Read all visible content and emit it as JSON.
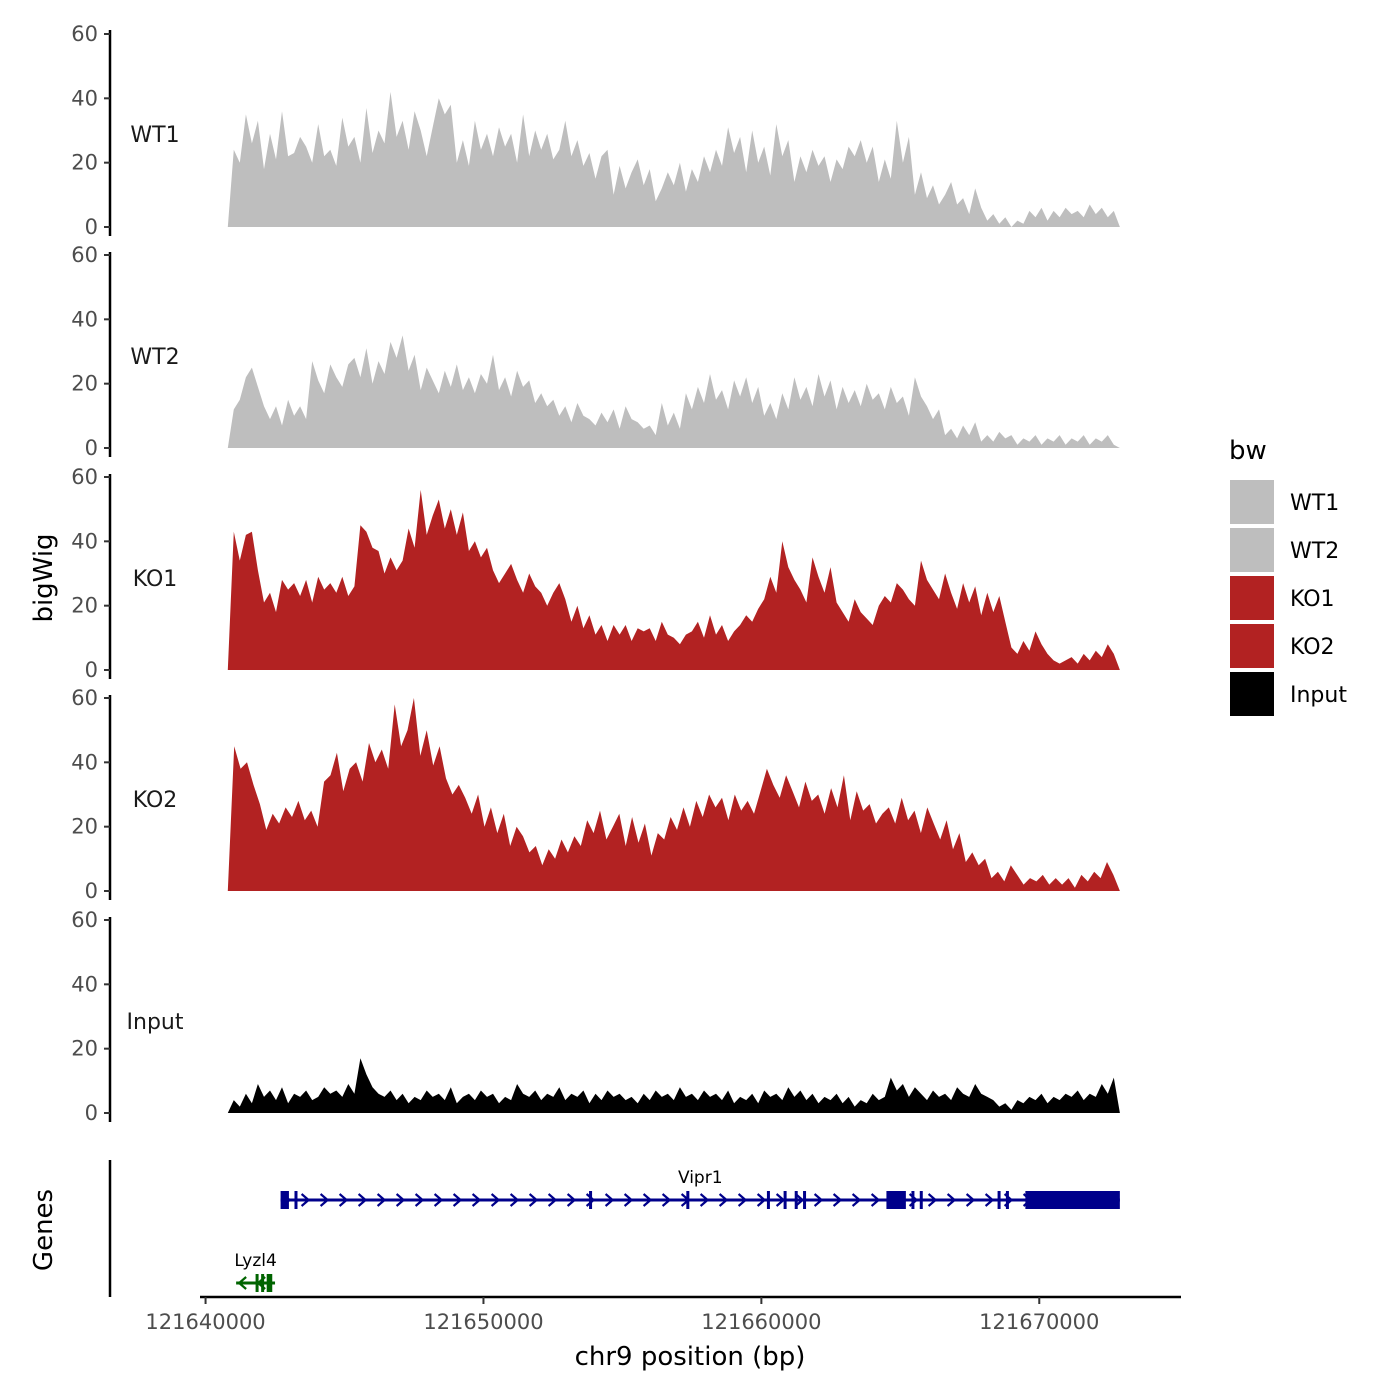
{
  "chart_data": {
    "type": "area",
    "ylabel": "bigWig",
    "xlabel": "chr9 position (bp)",
    "x_range": [
      121640800,
      121672900
    ],
    "x_axis_limits": [
      121639800,
      121675100
    ],
    "x_ticks": [
      121640000,
      121650000,
      121660000,
      121670000
    ],
    "x_tick_labels": [
      "121640000",
      "121650000",
      "121660000",
      "121670000"
    ],
    "y_ticks": [
      0,
      20,
      40,
      60
    ],
    "y_tick_labels": [
      "0",
      "20",
      "40",
      "60"
    ],
    "ylim": [
      0,
      62
    ],
    "legend": {
      "title": "bw",
      "position": "right",
      "items": [
        {
          "name": "WT1",
          "color": "#bebebe"
        },
        {
          "name": "WT2",
          "color": "#bebebe"
        },
        {
          "name": "KO1",
          "color": "#b22222"
        },
        {
          "name": "KO2",
          "color": "#b22222"
        },
        {
          "name": "Input",
          "color": "#000000"
        }
      ]
    },
    "series": [
      {
        "name": "WT1",
        "color": "#bebebe",
        "values": [
          0,
          24,
          20,
          35,
          26,
          33,
          18,
          29,
          21,
          36,
          22,
          23,
          28,
          25,
          20,
          32,
          22,
          24,
          19,
          34,
          25,
          28,
          20,
          37,
          23,
          30,
          26,
          42,
          28,
          33,
          24,
          36,
          30,
          22,
          31,
          40,
          35,
          38,
          20,
          27,
          19,
          33,
          24,
          29,
          22,
          31,
          25,
          29,
          20,
          35,
          22,
          30,
          24,
          29,
          21,
          24,
          33,
          22,
          27,
          19,
          23,
          15,
          22,
          24,
          10,
          19,
          12,
          17,
          21,
          13,
          18,
          8,
          12,
          17,
          13,
          20,
          11,
          18,
          14,
          22,
          17,
          24,
          19,
          31,
          23,
          28,
          17,
          30,
          20,
          25,
          16,
          32,
          22,
          27,
          14,
          22,
          17,
          24,
          19,
          22,
          14,
          21,
          18,
          25,
          22,
          27,
          20,
          25,
          14,
          21,
          15,
          33,
          20,
          28,
          10,
          17,
          9,
          13,
          7,
          10,
          14,
          7,
          9,
          4,
          12,
          6,
          2,
          4,
          1,
          3,
          0,
          2,
          1,
          5,
          3,
          6,
          2,
          5,
          3,
          6,
          4,
          5,
          3,
          7,
          4,
          6,
          3,
          5,
          0
        ]
      },
      {
        "name": "WT2",
        "color": "#bebebe",
        "values": [
          0,
          12,
          15,
          22,
          25,
          19,
          13,
          9,
          13,
          7,
          15,
          10,
          13,
          9,
          27,
          21,
          17,
          26,
          22,
          19,
          26,
          28,
          22,
          31,
          20,
          27,
          23,
          33,
          28,
          35,
          24,
          29,
          18,
          25,
          21,
          17,
          24,
          19,
          26,
          18,
          22,
          17,
          23,
          20,
          29,
          18,
          22,
          16,
          24,
          19,
          21,
          14,
          17,
          13,
          15,
          10,
          13,
          8,
          14,
          10,
          9,
          7,
          11,
          8,
          12,
          6,
          13,
          9,
          8,
          6,
          7,
          4,
          14,
          7,
          11,
          6,
          17,
          12,
          19,
          14,
          23,
          15,
          18,
          12,
          21,
          16,
          22,
          14,
          19,
          10,
          14,
          9,
          17,
          12,
          22,
          15,
          19,
          13,
          23,
          16,
          21,
          12,
          19,
          14,
          18,
          13,
          20,
          15,
          17,
          12,
          19,
          14,
          16,
          10,
          22,
          16,
          13,
          9,
          12,
          4,
          6,
          3,
          7,
          4,
          8,
          2,
          4,
          2,
          5,
          3,
          4,
          1,
          3,
          2,
          4,
          1,
          3,
          2,
          4,
          1,
          3,
          2,
          4,
          1,
          3,
          2,
          4,
          1,
          0
        ]
      },
      {
        "name": "KO1",
        "color": "#b22222",
        "values": [
          0,
          43,
          34,
          42,
          43,
          31,
          21,
          24,
          18,
          28,
          25,
          27,
          23,
          28,
          21,
          29,
          25,
          27,
          24,
          29,
          23,
          26,
          45,
          43,
          38,
          37,
          30,
          35,
          31,
          34,
          44,
          38,
          56,
          42,
          48,
          53,
          44,
          50,
          42,
          49,
          37,
          40,
          35,
          38,
          31,
          27,
          30,
          33,
          28,
          24,
          30,
          26,
          24,
          20,
          24,
          27,
          22,
          15,
          20,
          13,
          17,
          11,
          14,
          9,
          14,
          11,
          14,
          9,
          13,
          12,
          13,
          9,
          15,
          11,
          10,
          8,
          11,
          12,
          15,
          10,
          17,
          11,
          14,
          9,
          12,
          14,
          17,
          15,
          19,
          22,
          29,
          24,
          40,
          32,
          28,
          25,
          21,
          35,
          29,
          24,
          32,
          21,
          18,
          15,
          22,
          18,
          16,
          14,
          20,
          23,
          21,
          27,
          25,
          22,
          20,
          34,
          28,
          25,
          22,
          30,
          24,
          19,
          27,
          21,
          26,
          17,
          24,
          18,
          23,
          15,
          7,
          5,
          9,
          6,
          12,
          8,
          5,
          3,
          2,
          3,
          4,
          2,
          5,
          3,
          6,
          4,
          8,
          5,
          0
        ]
      },
      {
        "name": "KO2",
        "color": "#b22222",
        "values": [
          0,
          45,
          38,
          40,
          33,
          27,
          19,
          24,
          21,
          26,
          23,
          28,
          22,
          25,
          20,
          34,
          36,
          43,
          31,
          38,
          40,
          34,
          46,
          40,
          44,
          38,
          58,
          45,
          50,
          60,
          42,
          50,
          39,
          45,
          35,
          30,
          33,
          29,
          24,
          30,
          20,
          26,
          18,
          24,
          14,
          20,
          17,
          12,
          14,
          8,
          13,
          10,
          16,
          12,
          17,
          14,
          22,
          18,
          25,
          16,
          20,
          24,
          14,
          23,
          15,
          21,
          11,
          18,
          16,
          23,
          19,
          26,
          20,
          28,
          23,
          30,
          26,
          29,
          22,
          30,
          25,
          28,
          24,
          31,
          38,
          33,
          29,
          36,
          31,
          26,
          34,
          28,
          30,
          24,
          32,
          26,
          36,
          22,
          31,
          25,
          27,
          21,
          24,
          26,
          21,
          29,
          22,
          25,
          18,
          26,
          21,
          16,
          22,
          13,
          18,
          9,
          12,
          8,
          10,
          4,
          6,
          3,
          8,
          5,
          2,
          4,
          3,
          5,
          2,
          4,
          2,
          4,
          1,
          5,
          3,
          6,
          4,
          9,
          5,
          0
        ]
      },
      {
        "name": "Input",
        "color": "#000000",
        "values": [
          0,
          4,
          2,
          6,
          3,
          9,
          5,
          7,
          4,
          8,
          3,
          6,
          5,
          7,
          4,
          5,
          8,
          6,
          7,
          5,
          9,
          6,
          17,
          12,
          8,
          6,
          5,
          7,
          4,
          6,
          3,
          5,
          4,
          7,
          5,
          6,
          4,
          8,
          3,
          5,
          6,
          4,
          7,
          5,
          6,
          3,
          5,
          4,
          9,
          6,
          5,
          7,
          4,
          6,
          5,
          8,
          4,
          6,
          5,
          7,
          3,
          6,
          4,
          7,
          5,
          6,
          4,
          5,
          3,
          6,
          4,
          7,
          5,
          6,
          4,
          8,
          5,
          6,
          4,
          7,
          5,
          6,
          4,
          7,
          3,
          5,
          4,
          6,
          3,
          7,
          5,
          6,
          4,
          8,
          5,
          7,
          4,
          6,
          3,
          5,
          4,
          6,
          3,
          5,
          2,
          4,
          3,
          6,
          4,
          5,
          11,
          7,
          9,
          5,
          8,
          6,
          4,
          7,
          5,
          6,
          4,
          8,
          6,
          5,
          9,
          6,
          5,
          4,
          2,
          3,
          1,
          4,
          3,
          5,
          4,
          6,
          3,
          5,
          4,
          6,
          5,
          7,
          4,
          6,
          5,
          9,
          6,
          11,
          0
        ]
      }
    ],
    "genes": [
      {
        "name": "Vipr1",
        "start": 121642700,
        "end": 121672900,
        "strand": "+",
        "color": "#00008b",
        "exons": [
          [
            121642700,
            121643000
          ],
          [
            121643200,
            121643300
          ],
          [
            121653800,
            121653900
          ],
          [
            121657300,
            121657400
          ],
          [
            121660200,
            121660300
          ],
          [
            121660800,
            121660900
          ],
          [
            121661200,
            121661300
          ],
          [
            121661500,
            121661600
          ],
          [
            121664500,
            121665200
          ],
          [
            121665400,
            121665500
          ],
          [
            121665700,
            121665800
          ],
          [
            121668500,
            121668600
          ],
          [
            121668800,
            121668900
          ],
          [
            121669500,
            121672900
          ]
        ]
      },
      {
        "name": "Lyzl4",
        "start": 121641100,
        "end": 121642500,
        "strand": "-",
        "color": "#006400",
        "exons": [
          [
            121641800,
            121641900
          ],
          [
            121642000,
            121642100
          ],
          [
            121642200,
            121642400
          ]
        ]
      }
    ],
    "genes_panel_label": "Genes"
  }
}
